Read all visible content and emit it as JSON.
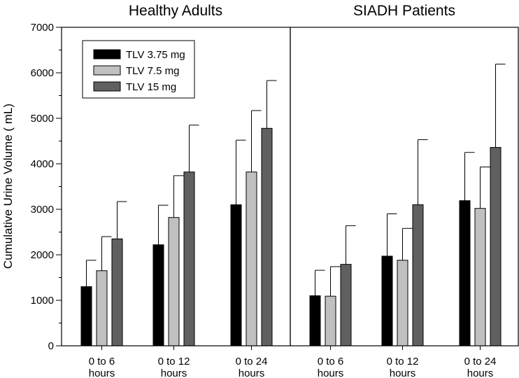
{
  "chart_data": {
    "type": "bar",
    "ylabel": "Cumulative Urine Volume ( mL)",
    "ylim": [
      0,
      7000
    ],
    "yticks": [
      0,
      1000,
      2000,
      3000,
      4000,
      5000,
      6000,
      7000
    ],
    "colors": [
      "#000000",
      "#c0c0c0",
      "#606060"
    ],
    "series_names": [
      "TLV 3.75 mg",
      "TLV 7.5 mg",
      "TLV 15 mg"
    ],
    "panels": [
      {
        "title": "Healthy Adults",
        "categories": [
          {
            "line1": "0 to 6",
            "line2": "hours"
          },
          {
            "line1": "0 to 12",
            "line2": "hours"
          },
          {
            "line1": "0 to 24",
            "line2": "hours"
          }
        ],
        "values": [
          [
            1300,
            1650,
            2350
          ],
          [
            2220,
            2820,
            3820
          ],
          [
            3100,
            3820,
            4780
          ]
        ],
        "errors": [
          [
            580,
            750,
            820
          ],
          [
            870,
            920,
            1030
          ],
          [
            1420,
            1350,
            1050
          ]
        ]
      },
      {
        "title": "SIADH Patients",
        "categories": [
          {
            "line1": "0 to 6",
            "line2": "hours"
          },
          {
            "line1": "0 to 12",
            "line2": "hours"
          },
          {
            "line1": "0 to 24",
            "line2": "hours"
          }
        ],
        "values": [
          [
            1100,
            1090,
            1790
          ],
          [
            1970,
            1880,
            3100
          ],
          [
            3190,
            3020,
            4360
          ]
        ],
        "errors": [
          [
            560,
            650,
            850
          ],
          [
            930,
            700,
            1430
          ],
          [
            1060,
            910,
            1830
          ]
        ]
      }
    ]
  }
}
